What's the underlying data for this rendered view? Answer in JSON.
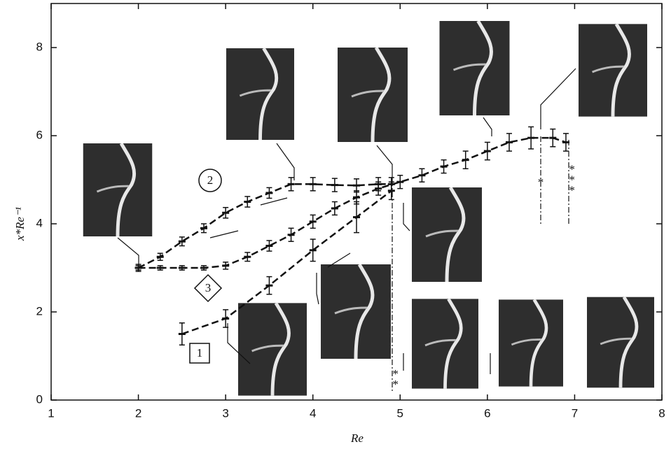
{
  "chart_data": {
    "type": "line",
    "xlabel": "Re",
    "ylabel": "x*Re⁻¹",
    "xlim": [
      1,
      8
    ],
    "ylim": [
      0,
      9
    ],
    "xticks": [
      1,
      2,
      3,
      4,
      5,
      6,
      7,
      8
    ],
    "yticks": [
      0,
      2,
      4,
      6,
      8
    ],
    "series": [
      {
        "name": "1",
        "color": "#111111",
        "x": [
          2.5,
          3.0,
          3.5,
          4.0,
          4.5,
          4.9
        ],
        "values": [
          1.5,
          1.85,
          2.6,
          3.4,
          4.15,
          4.75
        ],
        "errors": [
          0.25,
          0.2,
          0.2,
          0.25,
          0.35,
          0.2
        ]
      },
      {
        "name": "2",
        "color": "#111111",
        "x": [
          2.0,
          2.25,
          2.5,
          2.75,
          3.0,
          3.25,
          3.5,
          3.75,
          4.0,
          4.25,
          4.5,
          4.75,
          4.9
        ],
        "values": [
          3.0,
          3.25,
          3.6,
          3.9,
          4.25,
          4.5,
          4.7,
          4.9,
          4.9,
          4.88,
          4.87,
          4.9,
          4.9
        ],
        "errors": [
          0.08,
          0.08,
          0.1,
          0.1,
          0.12,
          0.12,
          0.12,
          0.15,
          0.15,
          0.15,
          0.15,
          0.15,
          0.15
        ]
      },
      {
        "name": "3",
        "color": "#111111",
        "x": [
          2.0,
          2.25,
          2.5,
          2.75,
          3.0,
          3.25,
          3.5,
          3.75,
          4.0,
          4.25,
          4.5,
          4.75,
          5.0,
          5.25,
          5.5,
          5.75,
          6.0,
          6.25,
          6.5,
          6.75,
          6.9
        ],
        "values": [
          3.0,
          3.0,
          3.0,
          3.0,
          3.05,
          3.25,
          3.5,
          3.75,
          4.05,
          4.35,
          4.6,
          4.8,
          4.95,
          5.1,
          5.3,
          5.45,
          5.65,
          5.85,
          5.95,
          5.95,
          5.85
        ],
        "errors": [
          0.05,
          0.05,
          0.05,
          0.05,
          0.08,
          0.1,
          0.12,
          0.15,
          0.15,
          0.15,
          0.15,
          0.15,
          0.15,
          0.15,
          0.15,
          0.2,
          0.2,
          0.2,
          0.25,
          0.2,
          0.2
        ]
      }
    ],
    "annotations": [
      "*",
      "**",
      "***"
    ]
  }
}
